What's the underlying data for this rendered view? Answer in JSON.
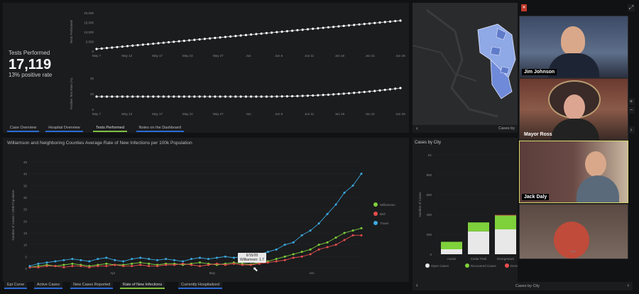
{
  "tests_panel": {
    "title": "Tests Performed",
    "total": "17,119",
    "positive_rate": "13% positive rate",
    "tabs": [
      "Case Overview",
      "Hospital Overview",
      "Tests Performed",
      "Notes on the Dashboard"
    ]
  },
  "top_chart": {
    "ylabel": "Tests Performed",
    "yticks": [
      "20,000",
      "15,000",
      "10,000",
      "5,000",
      "0"
    ],
    "xticks": [
      "May 7",
      "May 12",
      "May 17",
      "May 22",
      "May 27",
      "Jun",
      "Jun 6",
      "Jun 11",
      "Jun 16",
      "Jun 21",
      "Jun 26"
    ]
  },
  "mid_chart": {
    "ylabel": "Positive Test Rate (%)",
    "yticks": [
      "40",
      "20",
      "0"
    ],
    "xticks": [
      "May 7",
      "May 12",
      "May 17",
      "May 22",
      "May 27",
      "Jun",
      "Jun 6",
      "Jun 11",
      "Jun 16",
      "Jun 21",
      "Jun 26"
    ]
  },
  "main_chart_panel": {
    "title": "Williamson and Neighboring Counties Average Rate of New Infections per 100k Population",
    "ylabel": "Number of Cases / 100k Population",
    "yticks": [
      "45",
      "40",
      "35",
      "30",
      "25",
      "20",
      "15",
      "10",
      "5",
      "0"
    ],
    "xticks": [
      "Apr",
      "May",
      "Jun"
    ],
    "tooltip_date": "6/15/20",
    "tooltip_value": "Williamson: 1.7",
    "tabs": [
      "Epi Curve",
      "Active Cases",
      "New Cases Reported",
      "Rate of New Infections",
      "Currently Hospitalized"
    ]
  },
  "chart_data": {
    "type": "line",
    "title": "Williamson and Neighboring Counties Average Rate of New Infections per 100k Population",
    "xlabel": "",
    "ylabel": "Number of Cases / 100k Population",
    "ylim": [
      0,
      45
    ],
    "x_range": [
      "Mar",
      "Jul"
    ],
    "legend_position": "right",
    "series": [
      {
        "name": "Williamson",
        "color": "#7fd13b",
        "values": [
          0.5,
          1,
          1.5,
          1,
          1.5,
          2,
          1.5,
          1,
          1.5,
          2,
          1.5,
          1.5,
          2,
          2.5,
          2,
          1.5,
          2,
          2,
          1.5,
          2,
          2.5,
          2,
          1.5,
          2,
          2.5,
          2,
          1.7,
          2.5,
          3,
          4,
          5,
          6,
          7,
          8,
          10,
          11,
          13,
          15,
          16,
          17
        ]
      },
      {
        "name": "Bell",
        "color": "#e84d4d",
        "values": [
          0.5,
          0.5,
          1,
          1,
          0.5,
          1,
          1,
          0.5,
          1,
          1,
          1.5,
          1,
          1,
          1.5,
          1,
          1,
          1.5,
          1.5,
          2,
          1.5,
          1,
          1.5,
          2,
          1.5,
          2,
          1.5,
          1.5,
          2,
          2.5,
          3,
          3.5,
          4.5,
          5,
          6,
          8,
          9,
          10,
          12,
          14,
          14
        ]
      },
      {
        "name": "Travis",
        "color": "#3ba9e0",
        "values": [
          1,
          2,
          2.5,
          3,
          3.5,
          4,
          3.5,
          3,
          4,
          4.5,
          3.5,
          3,
          4,
          4.5,
          4,
          3.5,
          4,
          3.5,
          3,
          4,
          4.5,
          4,
          4.5,
          5,
          4.5,
          5,
          5.5,
          6,
          7,
          8,
          10,
          11,
          14,
          16,
          19,
          23,
          27,
          32,
          35,
          40
        ]
      }
    ]
  },
  "map_panel": {
    "footer_label": "Cases by"
  },
  "city_panel": {
    "title": "Cases by City",
    "ylabel": "Number of Cases",
    "yticks": [
      "1K",
      "800",
      "600",
      "400",
      "200",
      "0"
    ],
    "categories": [
      "Austin",
      "Cedar Park",
      "Georgetown"
    ],
    "legend": [
      "Open Cases",
      "Recovered Cases",
      "Deceased"
    ],
    "footer": "Cases by City",
    "chart_data": {
      "type": "bar",
      "categories": [
        "Austin",
        "Cedar Park",
        "Georgetown"
      ],
      "series": [
        {
          "name": "Open Cases",
          "values": [
            50,
            230,
            250
          ]
        },
        {
          "name": "Recovered Cases",
          "values": [
            75,
            90,
            140
          ]
        },
        {
          "name": "Deceased",
          "values": [
            0,
            0,
            5
          ]
        }
      ],
      "ylim": [
        0,
        1000
      ]
    }
  },
  "participants": [
    {
      "name": "Jim Johnson",
      "bg": "#6a7a8f"
    },
    {
      "name": "Mayor Ross",
      "bg": "#7a5a4a"
    },
    {
      "name": "Jack Daly",
      "bg": "#5a4a4a"
    },
    {
      "name": "",
      "bg": "#4a3a35"
    }
  ],
  "colors": {
    "accent": "#2a6bd1",
    "active_tab": "#7fbf3f",
    "active_speaker": "#d9d96a"
  }
}
